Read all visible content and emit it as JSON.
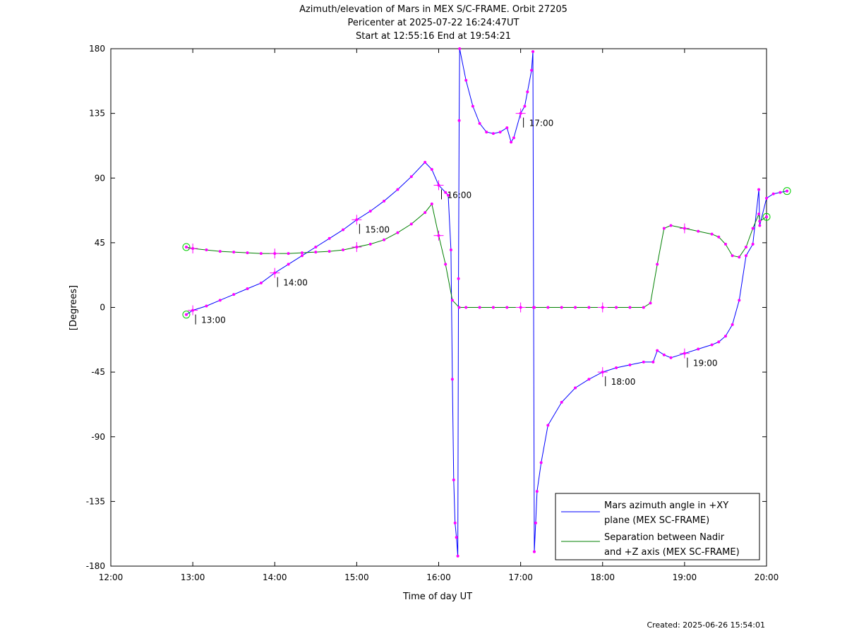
{
  "chart_data": {
    "type": "line",
    "title": [
      "Azimuth/elevation of Mars in MEX S/C-FRAME.  Orbit 27205",
      "Pericenter at 2025-07-22 16:24:47UT",
      "Start at 12:55:16 End at 19:54:21"
    ],
    "xlabel": "Time of day UT",
    "ylabel": "[Degrees]",
    "xlim": [
      "12:00",
      "20:00"
    ],
    "ylim": [
      -180,
      180
    ],
    "x_tick_labels": [
      "12:00",
      "13:00",
      "14:00",
      "15:00",
      "16:00",
      "17:00",
      "18:00",
      "19:00",
      "20:00"
    ],
    "y_ticks": [
      180,
      135,
      90,
      45,
      0,
      -45,
      -90,
      -135,
      -180
    ],
    "y_tick_labels": [
      "180",
      "135",
      "90",
      "45",
      "0",
      "-45",
      "-90",
      "-135",
      "-180"
    ],
    "grid": false,
    "legend_position": "bottom-right",
    "hour_annotations": [
      {
        "label": "13:00",
        "series": 0
      },
      {
        "label": "14:00",
        "series": 0
      },
      {
        "label": "15:00",
        "series": 0
      },
      {
        "label": "16:00",
        "series": 0
      },
      {
        "label": "17:00",
        "series": 0
      },
      {
        "label": "18:00",
        "series": 0
      },
      {
        "label": "19:00",
        "series": 0
      }
    ],
    "series": [
      {
        "name": "Mars azimuth angle in +XY plane (MEX SC-FRAME)",
        "legend_lines": [
          "Mars azimuth angle in +XY",
          "plane (MEX SC-FRAME)"
        ],
        "color": "#0000ff",
        "points": [
          [
            "12:55:16",
            -5
          ],
          [
            "13:00",
            -2
          ],
          [
            "13:10",
            1
          ],
          [
            "13:20",
            5
          ],
          [
            "13:30",
            9
          ],
          [
            "13:40",
            13
          ],
          [
            "13:50",
            17
          ],
          [
            "14:00",
            24
          ],
          [
            "14:10",
            30
          ],
          [
            "14:20",
            36
          ],
          [
            "14:30",
            42
          ],
          [
            "14:40",
            48
          ],
          [
            "14:50",
            54
          ],
          [
            "15:00",
            61
          ],
          [
            "15:10",
            67
          ],
          [
            "15:20",
            74
          ],
          [
            "15:30",
            82
          ],
          [
            "15:40",
            91
          ],
          [
            "15:50",
            101
          ],
          [
            "15:55",
            96
          ],
          [
            "16:00",
            85
          ],
          [
            "16:05",
            80
          ],
          [
            "16:07",
            78
          ],
          [
            "16:09",
            40
          ],
          [
            "16:10",
            -50
          ],
          [
            "16:11",
            -120
          ],
          [
            "16:12",
            -150
          ],
          [
            "16:13",
            -160
          ],
          [
            "16:14",
            -173
          ],
          [
            "16:14:30",
            20
          ],
          [
            "16:15",
            130
          ],
          [
            "16:15:20",
            180
          ],
          [
            "16:20",
            158
          ],
          [
            "16:25",
            140
          ],
          [
            "16:30",
            128
          ],
          [
            "16:35",
            122
          ],
          [
            "16:40",
            121
          ],
          [
            "16:45",
            122
          ],
          [
            "16:50",
            125
          ],
          [
            "16:53",
            115
          ],
          [
            "16:55",
            118
          ],
          [
            "17:00",
            135
          ],
          [
            "17:03",
            140
          ],
          [
            "17:05",
            150
          ],
          [
            "17:08",
            165
          ],
          [
            "17:09",
            178
          ],
          [
            "17:09:30",
            0
          ],
          [
            "17:10",
            -170
          ],
          [
            "17:11",
            -150
          ],
          [
            "17:12",
            -128
          ],
          [
            "17:15",
            -108
          ],
          [
            "17:20",
            -82
          ],
          [
            "17:30",
            -66
          ],
          [
            "17:40",
            -56
          ],
          [
            "17:50",
            -50
          ],
          [
            "18:00",
            -45
          ],
          [
            "18:10",
            -42
          ],
          [
            "18:20",
            -40
          ],
          [
            "18:30",
            -38
          ],
          [
            "18:37",
            -38
          ],
          [
            "18:40",
            -30
          ],
          [
            "18:45",
            -33
          ],
          [
            "18:50",
            -35
          ],
          [
            "19:00",
            -32
          ],
          [
            "19:10",
            -29
          ],
          [
            "19:20",
            -26
          ],
          [
            "19:25",
            -24
          ],
          [
            "19:30",
            -20
          ],
          [
            "19:35",
            -12
          ],
          [
            "19:40",
            5
          ],
          [
            "19:45",
            36
          ],
          [
            "19:50",
            44
          ],
          [
            "19:55",
            57
          ],
          [
            "20:00",
            76
          ],
          [
            "20:05",
            79
          ],
          [
            "20:10",
            80
          ],
          [
            "20:15",
            81
          ],
          [
            "19:54:21",
            82
          ]
        ]
      },
      {
        "name": "Separation between Nadir and +Z axis (MEX SC-FRAME)",
        "legend_lines": [
          "Separation between Nadir",
          "and +Z axis (MEX SC-FRAME)"
        ],
        "color": "#008000",
        "points": [
          [
            "12:55:16",
            42
          ],
          [
            "13:00",
            41
          ],
          [
            "13:10",
            40
          ],
          [
            "13:20",
            39
          ],
          [
            "13:30",
            38.5
          ],
          [
            "13:40",
            38
          ],
          [
            "13:50",
            37.5
          ],
          [
            "14:00",
            37.5
          ],
          [
            "14:10",
            37.5
          ],
          [
            "14:20",
            38
          ],
          [
            "14:30",
            38.5
          ],
          [
            "14:40",
            39
          ],
          [
            "14:50",
            40
          ],
          [
            "15:00",
            42
          ],
          [
            "15:10",
            44
          ],
          [
            "15:20",
            47
          ],
          [
            "15:30",
            52
          ],
          [
            "15:40",
            58
          ],
          [
            "15:50",
            66
          ],
          [
            "15:55",
            72
          ],
          [
            "16:00",
            50
          ],
          [
            "16:05",
            30
          ],
          [
            "16:10",
            5
          ],
          [
            "16:15",
            0
          ],
          [
            "16:20",
            0
          ],
          [
            "16:30",
            0
          ],
          [
            "16:40",
            0
          ],
          [
            "16:50",
            0
          ],
          [
            "17:00",
            0
          ],
          [
            "17:10",
            0
          ],
          [
            "17:20",
            0
          ],
          [
            "17:30",
            0
          ],
          [
            "17:40",
            0
          ],
          [
            "17:50",
            0
          ],
          [
            "18:00",
            0
          ],
          [
            "18:10",
            0
          ],
          [
            "18:20",
            0
          ],
          [
            "18:30",
            0
          ],
          [
            "18:35",
            3
          ],
          [
            "18:40",
            30
          ],
          [
            "18:45",
            55
          ],
          [
            "18:50",
            57
          ],
          [
            "19:00",
            55
          ],
          [
            "19:10",
            53
          ],
          [
            "19:20",
            51
          ],
          [
            "19:25",
            49
          ],
          [
            "19:30",
            44
          ],
          [
            "19:35",
            36
          ],
          [
            "19:40",
            35
          ],
          [
            "19:45",
            42
          ],
          [
            "19:50",
            55
          ],
          [
            "19:55",
            60
          ],
          [
            "20:00",
            63
          ],
          [
            "19:54:21",
            65
          ]
        ]
      }
    ],
    "footer": "Created: 2025-06-26 15:54:01"
  }
}
